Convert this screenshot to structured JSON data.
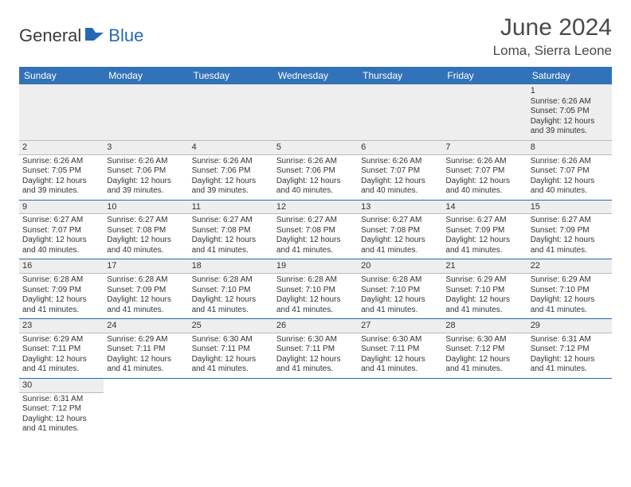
{
  "logo": {
    "part1": "General",
    "part2": "Blue"
  },
  "title": "June 2024",
  "location": "Loma, Sierra Leone",
  "header_bg": "#3272b8",
  "header_fg": "#ffffff",
  "accent": "#2569b4",
  "stripe_bg": "#eeeeee",
  "days": [
    "Sunday",
    "Monday",
    "Tuesday",
    "Wednesday",
    "Thursday",
    "Friday",
    "Saturday"
  ],
  "weeks": [
    [
      null,
      null,
      null,
      null,
      null,
      null,
      {
        "n": "1",
        "sr": "Sunrise: 6:26 AM",
        "ss": "Sunset: 7:05 PM",
        "dl1": "Daylight: 12 hours",
        "dl2": "and 39 minutes."
      }
    ],
    [
      {
        "n": "2",
        "sr": "Sunrise: 6:26 AM",
        "ss": "Sunset: 7:05 PM",
        "dl1": "Daylight: 12 hours",
        "dl2": "and 39 minutes."
      },
      {
        "n": "3",
        "sr": "Sunrise: 6:26 AM",
        "ss": "Sunset: 7:06 PM",
        "dl1": "Daylight: 12 hours",
        "dl2": "and 39 minutes."
      },
      {
        "n": "4",
        "sr": "Sunrise: 6:26 AM",
        "ss": "Sunset: 7:06 PM",
        "dl1": "Daylight: 12 hours",
        "dl2": "and 39 minutes."
      },
      {
        "n": "5",
        "sr": "Sunrise: 6:26 AM",
        "ss": "Sunset: 7:06 PM",
        "dl1": "Daylight: 12 hours",
        "dl2": "and 40 minutes."
      },
      {
        "n": "6",
        "sr": "Sunrise: 6:26 AM",
        "ss": "Sunset: 7:07 PM",
        "dl1": "Daylight: 12 hours",
        "dl2": "and 40 minutes."
      },
      {
        "n": "7",
        "sr": "Sunrise: 6:26 AM",
        "ss": "Sunset: 7:07 PM",
        "dl1": "Daylight: 12 hours",
        "dl2": "and 40 minutes."
      },
      {
        "n": "8",
        "sr": "Sunrise: 6:26 AM",
        "ss": "Sunset: 7:07 PM",
        "dl1": "Daylight: 12 hours",
        "dl2": "and 40 minutes."
      }
    ],
    [
      {
        "n": "9",
        "sr": "Sunrise: 6:27 AM",
        "ss": "Sunset: 7:07 PM",
        "dl1": "Daylight: 12 hours",
        "dl2": "and 40 minutes."
      },
      {
        "n": "10",
        "sr": "Sunrise: 6:27 AM",
        "ss": "Sunset: 7:08 PM",
        "dl1": "Daylight: 12 hours",
        "dl2": "and 40 minutes."
      },
      {
        "n": "11",
        "sr": "Sunrise: 6:27 AM",
        "ss": "Sunset: 7:08 PM",
        "dl1": "Daylight: 12 hours",
        "dl2": "and 41 minutes."
      },
      {
        "n": "12",
        "sr": "Sunrise: 6:27 AM",
        "ss": "Sunset: 7:08 PM",
        "dl1": "Daylight: 12 hours",
        "dl2": "and 41 minutes."
      },
      {
        "n": "13",
        "sr": "Sunrise: 6:27 AM",
        "ss": "Sunset: 7:08 PM",
        "dl1": "Daylight: 12 hours",
        "dl2": "and 41 minutes."
      },
      {
        "n": "14",
        "sr": "Sunrise: 6:27 AM",
        "ss": "Sunset: 7:09 PM",
        "dl1": "Daylight: 12 hours",
        "dl2": "and 41 minutes."
      },
      {
        "n": "15",
        "sr": "Sunrise: 6:27 AM",
        "ss": "Sunset: 7:09 PM",
        "dl1": "Daylight: 12 hours",
        "dl2": "and 41 minutes."
      }
    ],
    [
      {
        "n": "16",
        "sr": "Sunrise: 6:28 AM",
        "ss": "Sunset: 7:09 PM",
        "dl1": "Daylight: 12 hours",
        "dl2": "and 41 minutes."
      },
      {
        "n": "17",
        "sr": "Sunrise: 6:28 AM",
        "ss": "Sunset: 7:09 PM",
        "dl1": "Daylight: 12 hours",
        "dl2": "and 41 minutes."
      },
      {
        "n": "18",
        "sr": "Sunrise: 6:28 AM",
        "ss": "Sunset: 7:10 PM",
        "dl1": "Daylight: 12 hours",
        "dl2": "and 41 minutes."
      },
      {
        "n": "19",
        "sr": "Sunrise: 6:28 AM",
        "ss": "Sunset: 7:10 PM",
        "dl1": "Daylight: 12 hours",
        "dl2": "and 41 minutes."
      },
      {
        "n": "20",
        "sr": "Sunrise: 6:28 AM",
        "ss": "Sunset: 7:10 PM",
        "dl1": "Daylight: 12 hours",
        "dl2": "and 41 minutes."
      },
      {
        "n": "21",
        "sr": "Sunrise: 6:29 AM",
        "ss": "Sunset: 7:10 PM",
        "dl1": "Daylight: 12 hours",
        "dl2": "and 41 minutes."
      },
      {
        "n": "22",
        "sr": "Sunrise: 6:29 AM",
        "ss": "Sunset: 7:10 PM",
        "dl1": "Daylight: 12 hours",
        "dl2": "and 41 minutes."
      }
    ],
    [
      {
        "n": "23",
        "sr": "Sunrise: 6:29 AM",
        "ss": "Sunset: 7:11 PM",
        "dl1": "Daylight: 12 hours",
        "dl2": "and 41 minutes."
      },
      {
        "n": "24",
        "sr": "Sunrise: 6:29 AM",
        "ss": "Sunset: 7:11 PM",
        "dl1": "Daylight: 12 hours",
        "dl2": "and 41 minutes."
      },
      {
        "n": "25",
        "sr": "Sunrise: 6:30 AM",
        "ss": "Sunset: 7:11 PM",
        "dl1": "Daylight: 12 hours",
        "dl2": "and 41 minutes."
      },
      {
        "n": "26",
        "sr": "Sunrise: 6:30 AM",
        "ss": "Sunset: 7:11 PM",
        "dl1": "Daylight: 12 hours",
        "dl2": "and 41 minutes."
      },
      {
        "n": "27",
        "sr": "Sunrise: 6:30 AM",
        "ss": "Sunset: 7:11 PM",
        "dl1": "Daylight: 12 hours",
        "dl2": "and 41 minutes."
      },
      {
        "n": "28",
        "sr": "Sunrise: 6:30 AM",
        "ss": "Sunset: 7:12 PM",
        "dl1": "Daylight: 12 hours",
        "dl2": "and 41 minutes."
      },
      {
        "n": "29",
        "sr": "Sunrise: 6:31 AM",
        "ss": "Sunset: 7:12 PM",
        "dl1": "Daylight: 12 hours",
        "dl2": "and 41 minutes."
      }
    ],
    [
      {
        "n": "30",
        "sr": "Sunrise: 6:31 AM",
        "ss": "Sunset: 7:12 PM",
        "dl1": "Daylight: 12 hours",
        "dl2": "and 41 minutes."
      },
      null,
      null,
      null,
      null,
      null,
      null
    ]
  ]
}
